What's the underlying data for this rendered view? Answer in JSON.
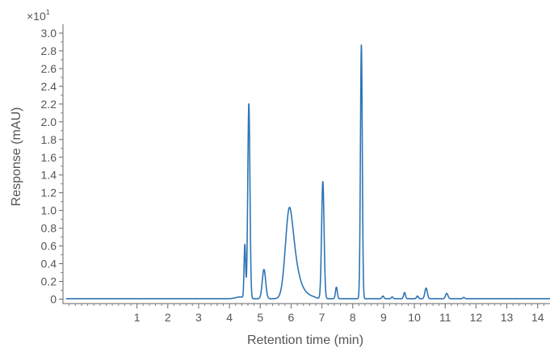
{
  "chart_data": {
    "type": "line",
    "title": "",
    "xlabel": "Retention time (min)",
    "ylabel": "Response (mAU)",
    "y_multiplier": {
      "base": "×10",
      "exponent": "1"
    },
    "xlim": [
      -1.4,
      14.4
    ],
    "ylim": [
      -0.05,
      3.1
    ],
    "x_ticks": [
      1,
      2,
      3,
      4,
      5,
      6,
      7,
      8,
      9,
      10,
      11,
      12,
      13,
      14
    ],
    "y_ticks": [
      0,
      0.2,
      0.4,
      0.6,
      0.8,
      1.0,
      1.2,
      1.4,
      1.6,
      1.8,
      2.0,
      2.2,
      2.4,
      2.6,
      2.8,
      3.0
    ],
    "y_tick_labels": [
      "0",
      "0.2",
      "0.4",
      "0.6",
      "0.8",
      "1.0",
      "1.2",
      "1.4",
      "1.6",
      "1.8",
      "2.0",
      "2.2",
      "2.4",
      "2.6",
      "2.8",
      "3.0"
    ],
    "grid": false,
    "series": [
      {
        "color": "#2e75b6",
        "baseline": 0.005,
        "peaks": [
          {
            "rt": 4.5,
            "height": 0.6,
            "width": 0.025
          },
          {
            "rt": 4.63,
            "height": 2.2,
            "width": 0.035
          },
          {
            "rt": 5.12,
            "height": 0.33,
            "width": 0.055
          },
          {
            "rt": 5.95,
            "height": 1.03,
            "width": 0.13,
            "tail": 0.2
          },
          {
            "rt": 7.03,
            "height": 1.32,
            "width": 0.04
          },
          {
            "rt": 7.47,
            "height": 0.13,
            "width": 0.03
          },
          {
            "rt": 8.28,
            "height": 2.86,
            "width": 0.03
          },
          {
            "rt": 8.98,
            "height": 0.03,
            "width": 0.03
          },
          {
            "rt": 9.28,
            "height": 0.02,
            "width": 0.03
          },
          {
            "rt": 9.68,
            "height": 0.07,
            "width": 0.03
          },
          {
            "rt": 10.1,
            "height": 0.03,
            "width": 0.03
          },
          {
            "rt": 10.38,
            "height": 0.12,
            "width": 0.04
          },
          {
            "rt": 11.05,
            "height": 0.06,
            "width": 0.04
          },
          {
            "rt": 11.6,
            "height": 0.015,
            "width": 0.03
          }
        ]
      }
    ]
  }
}
